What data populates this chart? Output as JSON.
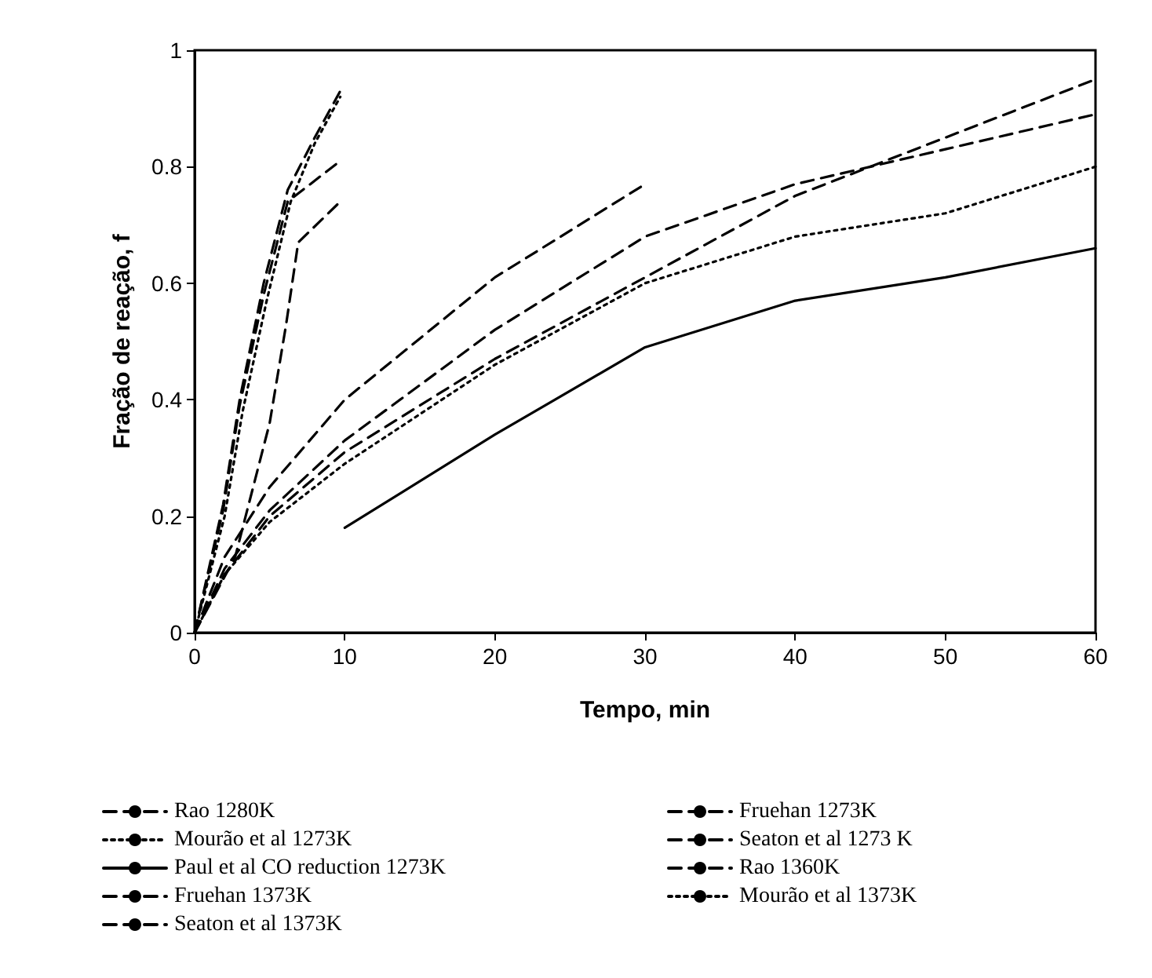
{
  "chart_data": {
    "type": "line",
    "xlabel": "Tempo, min",
    "ylabel": "Fração de reação, f",
    "xlim": [
      0,
      60
    ],
    "xticks": [
      0,
      10,
      20,
      30,
      40,
      50,
      60
    ],
    "ylim": [
      0,
      1
    ],
    "yticks": [
      0,
      0.2,
      0.4,
      0.6,
      0.8,
      1
    ],
    "grid": false,
    "legend": "bottom",
    "marker": "none",
    "series": [
      {
        "name": "Rao 1280K",
        "color": "#000000",
        "line_style": "dashed",
        "x": [
          0,
          2,
          5,
          10,
          20,
          30,
          40,
          50,
          60
        ],
        "values": [
          0,
          0.1,
          0.2,
          0.31,
          0.47,
          0.61,
          0.75,
          0.85,
          0.95
        ]
      },
      {
        "name": "Fruehan 1273K",
        "color": "#000000",
        "line_style": "dashed",
        "x": [
          0,
          2,
          5,
          10,
          20,
          30,
          40,
          50,
          60
        ],
        "values": [
          0,
          0.11,
          0.21,
          0.33,
          0.52,
          0.68,
          0.77,
          0.83,
          0.89
        ]
      },
      {
        "name": "Mourão et al 1273K",
        "color": "#000000",
        "line_style": "dotted",
        "x": [
          0,
          2,
          5,
          10,
          20,
          30,
          40,
          50,
          60
        ],
        "values": [
          0,
          0.1,
          0.19,
          0.29,
          0.46,
          0.6,
          0.68,
          0.72,
          0.8
        ]
      },
      {
        "name": "Seaton et al 1273 K",
        "color": "#000000",
        "line_style": "dashed",
        "x": [
          0,
          2,
          5,
          10,
          20,
          30
        ],
        "values": [
          0,
          0.13,
          0.25,
          0.4,
          0.61,
          0.77
        ]
      },
      {
        "name": "Paul et al CO reduction 1273K",
        "color": "#000000",
        "line_style": "solid",
        "x": [
          10,
          20,
          30,
          35,
          40,
          50,
          60
        ],
        "values": [
          0.18,
          0.34,
          0.49,
          0.53,
          0.57,
          0.61,
          0.66
        ]
      },
      {
        "name": "Rao 1360K",
        "color": "#000000",
        "line_style": "dashed",
        "x": [
          0,
          1.9,
          3,
          4.6,
          6.2,
          8,
          9.7
        ],
        "values": [
          0,
          0.22,
          0.4,
          0.6,
          0.76,
          0.85,
          0.93
        ]
      },
      {
        "name": "Fruehan 1373K",
        "color": "#000000",
        "line_style": "dashed",
        "x": [
          0,
          1.9,
          3,
          4.6,
          6.2,
          7.7,
          9.7
        ],
        "values": [
          0,
          0.21,
          0.39,
          0.58,
          0.74,
          0.77,
          0.81
        ]
      },
      {
        "name": "Mourão et al 1373K",
        "color": "#000000",
        "line_style": "dotted",
        "x": [
          0,
          2,
          3.2,
          4.8,
          6.4,
          8,
          9.7
        ],
        "values": [
          0,
          0.2,
          0.38,
          0.57,
          0.74,
          0.84,
          0.92
        ]
      },
      {
        "name": "Seaton et al 1373K",
        "color": "#000000",
        "line_style": "dashed",
        "x": [
          0,
          2.7,
          5,
          6.1,
          6.9,
          8.5,
          9.7
        ],
        "values": [
          0,
          0.13,
          0.36,
          0.53,
          0.67,
          0.71,
          0.74
        ]
      }
    ]
  }
}
